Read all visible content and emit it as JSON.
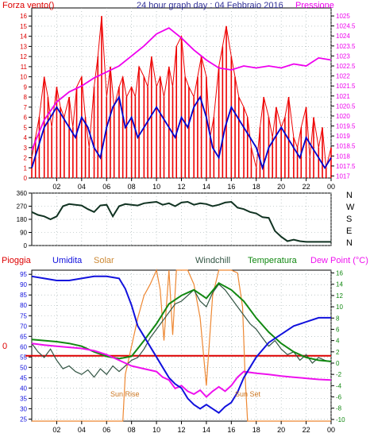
{
  "title": "24 hour graph day : 04 Febbraio 2016",
  "chart_data": [
    {
      "type": "line",
      "label_left": "Forza vento()",
      "label_right": "Pressione",
      "y_left_ticks": [
        0,
        1,
        2,
        3,
        4,
        5,
        6,
        7,
        8,
        9,
        10,
        11,
        12,
        13,
        14,
        15,
        16
      ],
      "y_left_range": [
        0,
        16.8
      ],
      "y_right_ticks": [
        "1017",
        "1017.5",
        "1018",
        "1018.5",
        "1019",
        "1019.5",
        "1020",
        "1020.5",
        "1021",
        "1021.5",
        "1022",
        "1022.5",
        "1023",
        "1023.5",
        "1024",
        "1024.5",
        "1025"
      ],
      "y_right_range": [
        1016.9,
        1025.4
      ],
      "x_ticks": [
        "02",
        "04",
        "06",
        "08",
        "10",
        "12",
        "14",
        "16",
        "18",
        "20",
        "22",
        "00"
      ],
      "x_range": [
        0,
        24
      ],
      "colors": {
        "gust": "#ee0000",
        "wind": "#0000cc",
        "pressure": "#ee00ee"
      },
      "series": [
        {
          "key": "gust",
          "x": [
            0,
            0.3,
            0.6,
            1,
            1.3,
            1.6,
            2,
            2.3,
            2.6,
            3,
            3.3,
            3.6,
            4,
            4.3,
            4.6,
            5,
            5.3,
            5.6,
            6,
            6.3,
            6.6,
            7,
            7.3,
            7.6,
            8,
            8.3,
            8.6,
            9,
            9.3,
            9.6,
            10,
            10.3,
            10.6,
            11,
            11.3,
            11.6,
            12,
            12.3,
            12.6,
            13,
            13.3,
            13.6,
            14,
            14.3,
            14.6,
            15,
            15.3,
            15.6,
            16,
            16.3,
            16.6,
            17,
            17.3,
            17.6,
            18,
            18.3,
            18.6,
            19,
            19.3,
            19.6,
            20,
            20.3,
            20.6,
            21,
            21.3,
            21.6,
            22,
            22.3,
            22.6,
            23,
            23.3,
            23.6,
            24
          ],
          "y": [
            2,
            4,
            6,
            10,
            8,
            5,
            9,
            7,
            6,
            8,
            5,
            9,
            10,
            6,
            3,
            9,
            12,
            16,
            8,
            11,
            7,
            9,
            10,
            8,
            9,
            8,
            11,
            10,
            9,
            12,
            9,
            10,
            8,
            11,
            9,
            13,
            14,
            10,
            9,
            8,
            10,
            12,
            10,
            4,
            6,
            11,
            13,
            15,
            12,
            10,
            8,
            7,
            6,
            3,
            1,
            5,
            8,
            6,
            4,
            7,
            5,
            6,
            8,
            4,
            3,
            5,
            7,
            2,
            6,
            3,
            5,
            1,
            3
          ],
          "drawn": "bars"
        },
        {
          "key": "wind",
          "x": [
            0,
            0.5,
            1,
            1.5,
            2,
            2.5,
            3,
            3.5,
            4,
            4.5,
            5,
            5.5,
            6,
            6.5,
            7,
            7.5,
            8,
            8.5,
            9,
            9.5,
            10,
            10.5,
            11,
            11.5,
            12,
            12.5,
            13,
            13.5,
            14,
            14.5,
            15,
            15.5,
            16,
            16.5,
            17,
            17.5,
            18,
            18.5,
            19,
            19.5,
            20,
            20.5,
            21,
            21.5,
            22,
            22.5,
            23,
            23.5,
            24
          ],
          "y": [
            1,
            3,
            5,
            6,
            7,
            6,
            5,
            4,
            6,
            5,
            3,
            2,
            5,
            7,
            8,
            5,
            6,
            4,
            5,
            6,
            7,
            6,
            5,
            4,
            6,
            5,
            7,
            8,
            6,
            3,
            2,
            5,
            7,
            6,
            5,
            4,
            3,
            1,
            3,
            4,
            5,
            4,
            3,
            2,
            4,
            3,
            2,
            1,
            2
          ]
        },
        {
          "key": "pressure",
          "x": [
            0,
            1,
            2,
            3,
            4,
            5,
            6,
            7,
            8,
            9,
            10,
            11,
            12,
            13,
            14,
            15,
            16,
            17,
            18,
            19,
            20,
            21,
            22,
            23,
            24
          ],
          "y": [
            1018.3,
            1019.8,
            1020.7,
            1021.2,
            1021.5,
            1021.9,
            1022.2,
            1022.5,
            1023.0,
            1023.5,
            1024.1,
            1024.4,
            1023.9,
            1023.3,
            1022.8,
            1022.4,
            1022.3,
            1022.5,
            1022.4,
            1022.5,
            1022.4,
            1022.6,
            1022.5,
            1022.9,
            1022.8
          ]
        }
      ]
    },
    {
      "type": "line",
      "y_ticks": [
        "360",
        "270",
        "180",
        "90",
        "0"
      ],
      "y_range": [
        0,
        360
      ],
      "direction_labels": [
        "N",
        "W",
        "S",
        "E",
        "N"
      ],
      "colors": {
        "direction": "#113322"
      },
      "series": [
        {
          "key": "direction",
          "x": [
            0,
            0.5,
            1,
            1.5,
            2,
            2.5,
            3,
            3.5,
            4,
            4.5,
            5,
            5.5,
            6,
            6.5,
            7,
            7.5,
            8,
            8.5,
            9,
            9.5,
            10,
            10.5,
            11,
            11.5,
            12,
            12.5,
            13,
            13.5,
            14,
            14.5,
            15,
            15.5,
            16,
            16.5,
            17,
            17.5,
            18,
            18.5,
            19,
            19.5,
            20,
            20.5,
            21,
            21.5,
            22,
            22.5,
            23,
            23.5,
            24
          ],
          "y": [
            230,
            210,
            200,
            180,
            200,
            270,
            285,
            280,
            275,
            250,
            230,
            275,
            280,
            200,
            270,
            285,
            280,
            275,
            290,
            295,
            300,
            280,
            290,
            270,
            295,
            300,
            280,
            290,
            285,
            270,
            280,
            295,
            300,
            260,
            250,
            230,
            220,
            195,
            190,
            100,
            60,
            30,
            40,
            30,
            25,
            25,
            25,
            25,
            25
          ]
        }
      ]
    },
    {
      "type": "line",
      "legend": [
        "Pioggia",
        "Umidita",
        "Solar",
        "Windchill",
        "Temperatura",
        "Dew Point (°C)"
      ],
      "y_left_ticks": [
        "95",
        "90",
        "85",
        "80",
        "75",
        "70",
        "65",
        "60",
        "55",
        "50",
        "45",
        "40",
        "35",
        "30",
        "25"
      ],
      "y_left_range": [
        24,
        97
      ],
      "y_right_ticks": [
        "16",
        "14",
        "12",
        "10",
        "8",
        "6",
        "4",
        "2",
        "0",
        "-2",
        "-4",
        "-6",
        "-8",
        "-10"
      ],
      "y_right_range": [
        -10.3,
        16.5
      ],
      "rain_value": "0",
      "annotations": [
        "Sun Rise",
        "Sun Set"
      ],
      "colors": {
        "rain": "#dd0000",
        "humidity": "#1111dd",
        "solar": "#ee8833",
        "windchill": "#335544",
        "temperature": "#118811",
        "dewpoint": "#ee11ee"
      },
      "series": [
        {
          "key": "humidity",
          "x": [
            0,
            1,
            2,
            3,
            4,
            5,
            6,
            7,
            7.5,
            8,
            8.5,
            9,
            9.5,
            10,
            10.5,
            11,
            11.5,
            12,
            12.5,
            13,
            13.5,
            14,
            14.5,
            15,
            15.5,
            16,
            16.5,
            17,
            17.5,
            18,
            19,
            20,
            21,
            22,
            23,
            24
          ],
          "y": [
            94,
            93,
            92,
            92,
            93,
            94,
            94,
            93,
            88,
            80,
            70,
            65,
            60,
            55,
            50,
            45,
            42,
            40,
            35,
            32,
            30,
            32,
            30,
            28,
            31,
            33,
            38,
            45,
            50,
            55,
            62,
            66,
            70,
            72,
            74,
            74
          ]
        },
        {
          "key": "temperature",
          "x": [
            0,
            1,
            2,
            3,
            4,
            5,
            6,
            7,
            8,
            9,
            10,
            11,
            12,
            13,
            14,
            15,
            16,
            17,
            18,
            19,
            20,
            21,
            22,
            23,
            24
          ],
          "y": [
            4.2,
            4.0,
            3.8,
            3.5,
            3.0,
            2.0,
            1.2,
            0.8,
            1.2,
            4.0,
            7.0,
            10.5,
            12.0,
            13.0,
            11.5,
            14.2,
            13.0,
            11.0,
            8.0,
            5.5,
            3.5,
            2.0,
            1.0,
            0.5,
            0.3
          ]
        },
        {
          "key": "windchill",
          "x": [
            0,
            0.5,
            1,
            1.5,
            2,
            2.5,
            3,
            3.5,
            4,
            4.5,
            5,
            5.5,
            6,
            6.5,
            7,
            7.5,
            8,
            8.5,
            9,
            9.5,
            10,
            10.5,
            11,
            11.5,
            12,
            12.5,
            13,
            13.5,
            14,
            14.5,
            15,
            15.5,
            16,
            16.5,
            17,
            17.5,
            18,
            18.5,
            19,
            19.5,
            20,
            20.5,
            21,
            21.5,
            22,
            22.5,
            23,
            23.5,
            24
          ],
          "y": [
            3.5,
            2.0,
            1.0,
            2.5,
            0.5,
            -1.0,
            -0.5,
            -1.5,
            -2.0,
            -1.2,
            -2.5,
            -1.0,
            -2.0,
            -0.5,
            -1.5,
            -0.5,
            0.5,
            1.0,
            2.5,
            4.5,
            6.0,
            7.5,
            9.0,
            10.5,
            11.0,
            12.0,
            13.0,
            11.0,
            10.0,
            12.5,
            14.0,
            13.0,
            11.5,
            10.0,
            8.5,
            7.0,
            6.0,
            4.5,
            3.0,
            4.0,
            2.5,
            1.5,
            2.0,
            0.5,
            1.5,
            0.0,
            1.0,
            0.5,
            0.2
          ]
        },
        {
          "key": "dewpoint",
          "x": [
            0,
            1,
            2,
            3,
            4,
            5,
            6,
            7,
            8,
            9,
            10,
            10.5,
            11,
            11.5,
            12,
            12.5,
            13,
            13.5,
            14,
            14.5,
            15,
            15.5,
            16,
            16.5,
            17,
            18,
            19,
            20,
            21,
            22,
            23,
            24
          ],
          "y": [
            3.5,
            3.2,
            3.0,
            2.8,
            2.6,
            2.2,
            1.5,
            0.5,
            -0.5,
            -1.0,
            -1.5,
            -2.5,
            -3.0,
            -4.5,
            -4.0,
            -5.0,
            -5.5,
            -4.8,
            -6.0,
            -5.0,
            -4.2,
            -5.0,
            -4.0,
            -2.5,
            -1.5,
            -1.8,
            -2.0,
            -2.3,
            -2.5,
            -2.7,
            -2.9,
            -3.0
          ]
        },
        {
          "key": "solar",
          "x": [
            0,
            7.3,
            7.5,
            8,
            8.5,
            9,
            9.5,
            10,
            10.3,
            10.6,
            11,
            11.3,
            11.6,
            12,
            12.5,
            13,
            13.5,
            14,
            14.5,
            15,
            15.5,
            16,
            16.5,
            16.9,
            17.1,
            17.3,
            18,
            24
          ],
          "y": [
            -10.3,
            -10.3,
            -2,
            3,
            8,
            12,
            14,
            16.5,
            13,
            4,
            16.5,
            5,
            16.5,
            16.5,
            16.5,
            14,
            8,
            -4,
            12,
            16.5,
            16.5,
            16.5,
            16,
            10,
            -2,
            -10.3,
            -10.3,
            -10.3
          ]
        }
      ]
    }
  ]
}
